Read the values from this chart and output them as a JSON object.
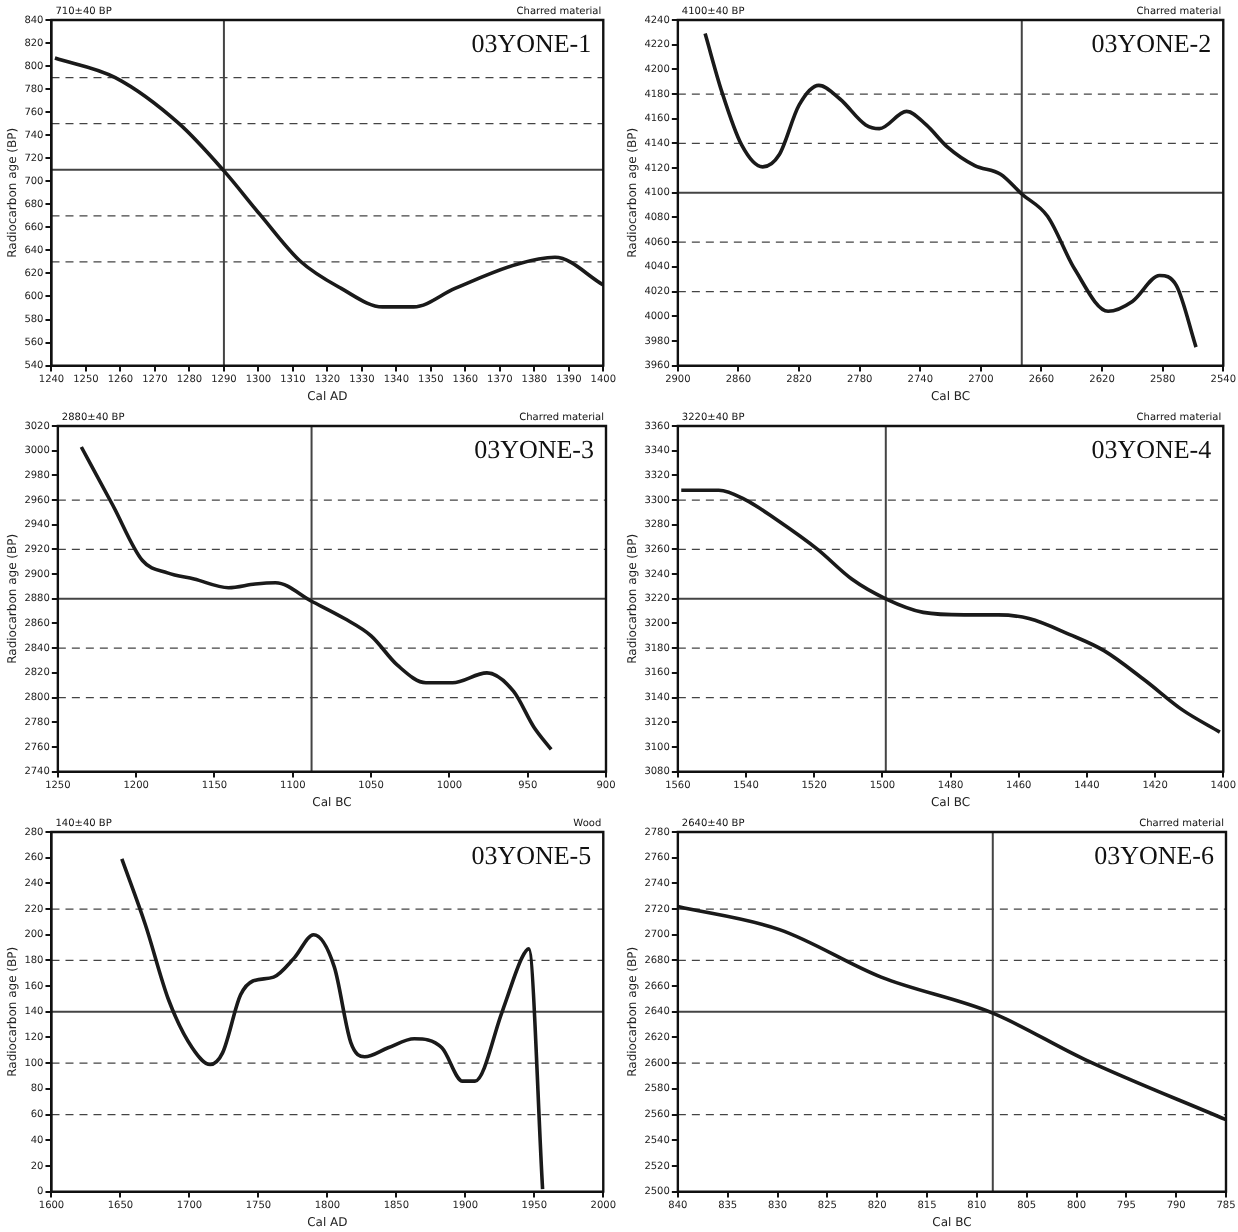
{
  "chart_data": [
    {
      "type": "line",
      "title": "03YONE-1",
      "subtitle": "710±40 BP",
      "annotations": [
        "Charred material"
      ],
      "xlabel": "Cal AD",
      "ylabel": "Radiocarbon age (BP)",
      "marker": "none",
      "x": [
        1241,
        1258.5,
        1277,
        1290,
        1300.5,
        1312,
        1324,
        1336,
        1345,
        1357,
        1375,
        1386,
        1400
      ],
      "series": [
        {
          "color": "#1a1a1a",
          "values": [
            807,
            790,
            750,
            709,
            671,
            631,
            607,
            591,
            591,
            607,
            628,
            634,
            610
          ]
        }
      ],
      "xlim": [
        1240,
        1400
      ],
      "xticks": [
        1240,
        1250,
        1260,
        1270,
        1280,
        1290,
        1300,
        1310,
        1320,
        1330,
        1340,
        1350,
        1360,
        1370,
        1380,
        1390,
        1400
      ],
      "ylim": [
        540,
        840
      ],
      "yticks": [
        540,
        560,
        580,
        600,
        620,
        640,
        660,
        680,
        700,
        720,
        740,
        760,
        780,
        800,
        820,
        840
      ],
      "ref_lines": [
        {
          "axis": "y",
          "value": 710,
          "line_style": "solid"
        },
        {
          "axis": "y",
          "value": 750,
          "line_style": "dashed"
        },
        {
          "axis": "y",
          "value": 670,
          "line_style": "dashed"
        },
        {
          "axis": "y",
          "value": 790,
          "line_style": "dashed"
        },
        {
          "axis": "y",
          "value": 630,
          "line_style": "dashed"
        },
        {
          "axis": "x",
          "value": 1290,
          "line_style": "solid"
        }
      ]
    },
    {
      "type": "line",
      "title": "03YONE-2",
      "subtitle": "4100±40 BP",
      "annotations": [
        "Charred material"
      ],
      "xlabel": "Cal BC",
      "ylabel": "Radiocarbon age (BP)",
      "marker": "none",
      "x": [
        2882,
        2871,
        2858,
        2844,
        2833,
        2820,
        2807,
        2793,
        2776,
        2767,
        2749,
        2736,
        2722,
        2704,
        2687,
        2673,
        2656,
        2638,
        2616,
        2600,
        2582,
        2571,
        2558
      ],
      "series": [
        {
          "color": "#1a1a1a",
          "values": [
            4229,
            4182,
            4139,
            4121,
            4131,
            4171,
            4187,
            4176,
            4155,
            4152,
            4166,
            4155,
            4137,
            4122,
            4115,
            4099,
            4081,
            4038,
            4004,
            4012,
            4033,
            4025,
            3975
          ]
        }
      ],
      "xlim": [
        2900,
        2540
      ],
      "xticks": [
        2900,
        2860,
        2820,
        2780,
        2740,
        2700,
        2660,
        2620,
        2580,
        2540
      ],
      "ylim": [
        3960,
        4240
      ],
      "yticks": [
        3960,
        3980,
        4000,
        4020,
        4040,
        4060,
        4080,
        4100,
        4120,
        4140,
        4160,
        4180,
        4200,
        4220,
        4240
      ],
      "ref_lines": [
        {
          "axis": "y",
          "value": 4100,
          "line_style": "solid"
        },
        {
          "axis": "y",
          "value": 4140,
          "line_style": "dashed"
        },
        {
          "axis": "y",
          "value": 4060,
          "line_style": "dashed"
        },
        {
          "axis": "y",
          "value": 4180,
          "line_style": "dashed"
        },
        {
          "axis": "y",
          "value": 4020,
          "line_style": "dashed"
        },
        {
          "axis": "x",
          "value": 2673,
          "line_style": "solid"
        }
      ]
    },
    {
      "type": "line",
      "title": "03YONE-3",
      "subtitle": "2880±40 BP",
      "annotations": [
        "Charred material"
      ],
      "xlabel": "Cal BC",
      "ylabel": "Radiocarbon age (BP)",
      "marker": "none",
      "x": [
        1235,
        1215,
        1196,
        1180,
        1163,
        1141,
        1124,
        1111,
        1088,
        1067,
        1050,
        1033,
        1015,
        998,
        976,
        959,
        946,
        935
      ],
      "series": [
        {
          "color": "#1a1a1a",
          "values": [
            3003,
            2956,
            2911,
            2901,
            2896,
            2889,
            2892,
            2893,
            2878,
            2864,
            2850,
            2826,
            2812,
            2812,
            2820,
            2805,
            2776,
            2758
          ]
        }
      ],
      "xlim": [
        1250,
        900
      ],
      "xticks": [
        1250,
        1200,
        1150,
        1100,
        1050,
        1000,
        950,
        900
      ],
      "ylim": [
        2740,
        3020
      ],
      "yticks": [
        2740,
        2760,
        2780,
        2800,
        2820,
        2840,
        2860,
        2880,
        2900,
        2920,
        2940,
        2960,
        2980,
        3000,
        3020
      ],
      "ref_lines": [
        {
          "axis": "y",
          "value": 2880,
          "line_style": "solid"
        },
        {
          "axis": "y",
          "value": 2920,
          "line_style": "dashed"
        },
        {
          "axis": "y",
          "value": 2840,
          "line_style": "dashed"
        },
        {
          "axis": "y",
          "value": 2960,
          "line_style": "dashed"
        },
        {
          "axis": "y",
          "value": 2800,
          "line_style": "dashed"
        },
        {
          "axis": "x",
          "value": 1088,
          "line_style": "solid"
        }
      ]
    },
    {
      "type": "line",
      "title": "03YONE-4",
      "subtitle": "3220±40 BP",
      "annotations": [
        "Charred material"
      ],
      "xlabel": "Cal BC",
      "ylabel": "Radiocarbon age (BP)",
      "marker": "none",
      "x": [
        1559,
        1548,
        1540,
        1531,
        1519,
        1509,
        1499,
        1488,
        1476,
        1466,
        1457,
        1445,
        1435,
        1423,
        1412,
        1401
      ],
      "series": [
        {
          "color": "#1a1a1a",
          "values": [
            3308,
            3308,
            3300,
            3284,
            3260,
            3236,
            3220,
            3209,
            3207,
            3207,
            3204,
            3191,
            3178,
            3154,
            3130,
            3112
          ]
        }
      ],
      "xlim": [
        1560,
        1400
      ],
      "xticks": [
        1560,
        1540,
        1520,
        1500,
        1480,
        1460,
        1440,
        1420,
        1400
      ],
      "ylim": [
        3080,
        3360
      ],
      "yticks": [
        3080,
        3100,
        3120,
        3140,
        3160,
        3180,
        3200,
        3220,
        3240,
        3260,
        3280,
        3300,
        3320,
        3340,
        3360
      ],
      "ref_lines": [
        {
          "axis": "y",
          "value": 3220,
          "line_style": "solid"
        },
        {
          "axis": "y",
          "value": 3260,
          "line_style": "dashed"
        },
        {
          "axis": "y",
          "value": 3180,
          "line_style": "dashed"
        },
        {
          "axis": "y",
          "value": 3300,
          "line_style": "dashed"
        },
        {
          "axis": "y",
          "value": 3140,
          "line_style": "dashed"
        },
        {
          "axis": "x",
          "value": 1499,
          "line_style": "solid"
        }
      ]
    },
    {
      "type": "line",
      "title": "03YONE-5",
      "subtitle": "140±40 BP",
      "annotations": [
        "Wood"
      ],
      "xlabel": "Cal AD",
      "ylabel": "Radiocarbon age (BP)",
      "marker": "none",
      "x": [
        1651,
        1668,
        1685,
        1702,
        1715,
        1724,
        1737,
        1746,
        1761,
        1776,
        1790,
        1805,
        1817,
        1827,
        1844,
        1863,
        1883,
        1898,
        1907,
        1927,
        1941,
        1946,
        1956
      ],
      "series": [
        {
          "color": "#1a1a1a",
          "values": [
            259,
            208,
            149,
            112,
            99,
            108,
            153,
            164,
            167,
            182,
            200,
            175,
            116,
            105,
            112,
            119,
            112,
            86,
            86,
            141,
            182,
            189,
            2
          ]
        }
      ],
      "xlim": [
        1600,
        2000
      ],
      "xticks": [
        1600,
        1650,
        1700,
        1750,
        1800,
        1850,
        1900,
        1950,
        2000
      ],
      "ylim": [
        0,
        280
      ],
      "yticks": [
        0,
        20,
        40,
        60,
        80,
        100,
        120,
        140,
        160,
        180,
        200,
        220,
        240,
        260,
        280
      ],
      "ref_lines": [
        {
          "axis": "y",
          "value": 140,
          "line_style": "solid"
        },
        {
          "axis": "y",
          "value": 180,
          "line_style": "dashed"
        },
        {
          "axis": "y",
          "value": 100,
          "line_style": "dashed"
        },
        {
          "axis": "y",
          "value": 220,
          "line_style": "dashed"
        },
        {
          "axis": "y",
          "value": 60,
          "line_style": "dashed"
        }
      ]
    },
    {
      "type": "line",
      "title": "03YONE-6",
      "subtitle": "2640±40 BP",
      "annotations": [
        "Charred material"
      ],
      "xlabel": "Cal BC",
      "ylabel": "Radiocarbon age (BP)",
      "marker": "none",
      "x": [
        840,
        829.8,
        819.6,
        808.4,
        799.2,
        785
      ],
      "series": [
        {
          "color": "#1a1a1a",
          "values": [
            2722,
            2704,
            2667,
            2639,
            2603,
            2556
          ]
        }
      ],
      "xlim": [
        840,
        785
      ],
      "xticks": [
        840,
        835,
        830,
        825,
        820,
        815,
        810,
        805,
        800,
        795,
        790,
        785
      ],
      "ylim": [
        2500,
        2780
      ],
      "yticks": [
        2500,
        2520,
        2540,
        2560,
        2580,
        2600,
        2620,
        2640,
        2660,
        2680,
        2700,
        2720,
        2740,
        2760,
        2780
      ],
      "ref_lines": [
        {
          "axis": "y",
          "value": 2640,
          "line_style": "solid"
        },
        {
          "axis": "y",
          "value": 2680,
          "line_style": "dashed"
        },
        {
          "axis": "y",
          "value": 2600,
          "line_style": "dashed"
        },
        {
          "axis": "y",
          "value": 2720,
          "line_style": "dashed"
        },
        {
          "axis": "y",
          "value": 2560,
          "line_style": "dashed"
        },
        {
          "axis": "x",
          "value": 808.4,
          "line_style": "solid"
        }
      ]
    }
  ]
}
